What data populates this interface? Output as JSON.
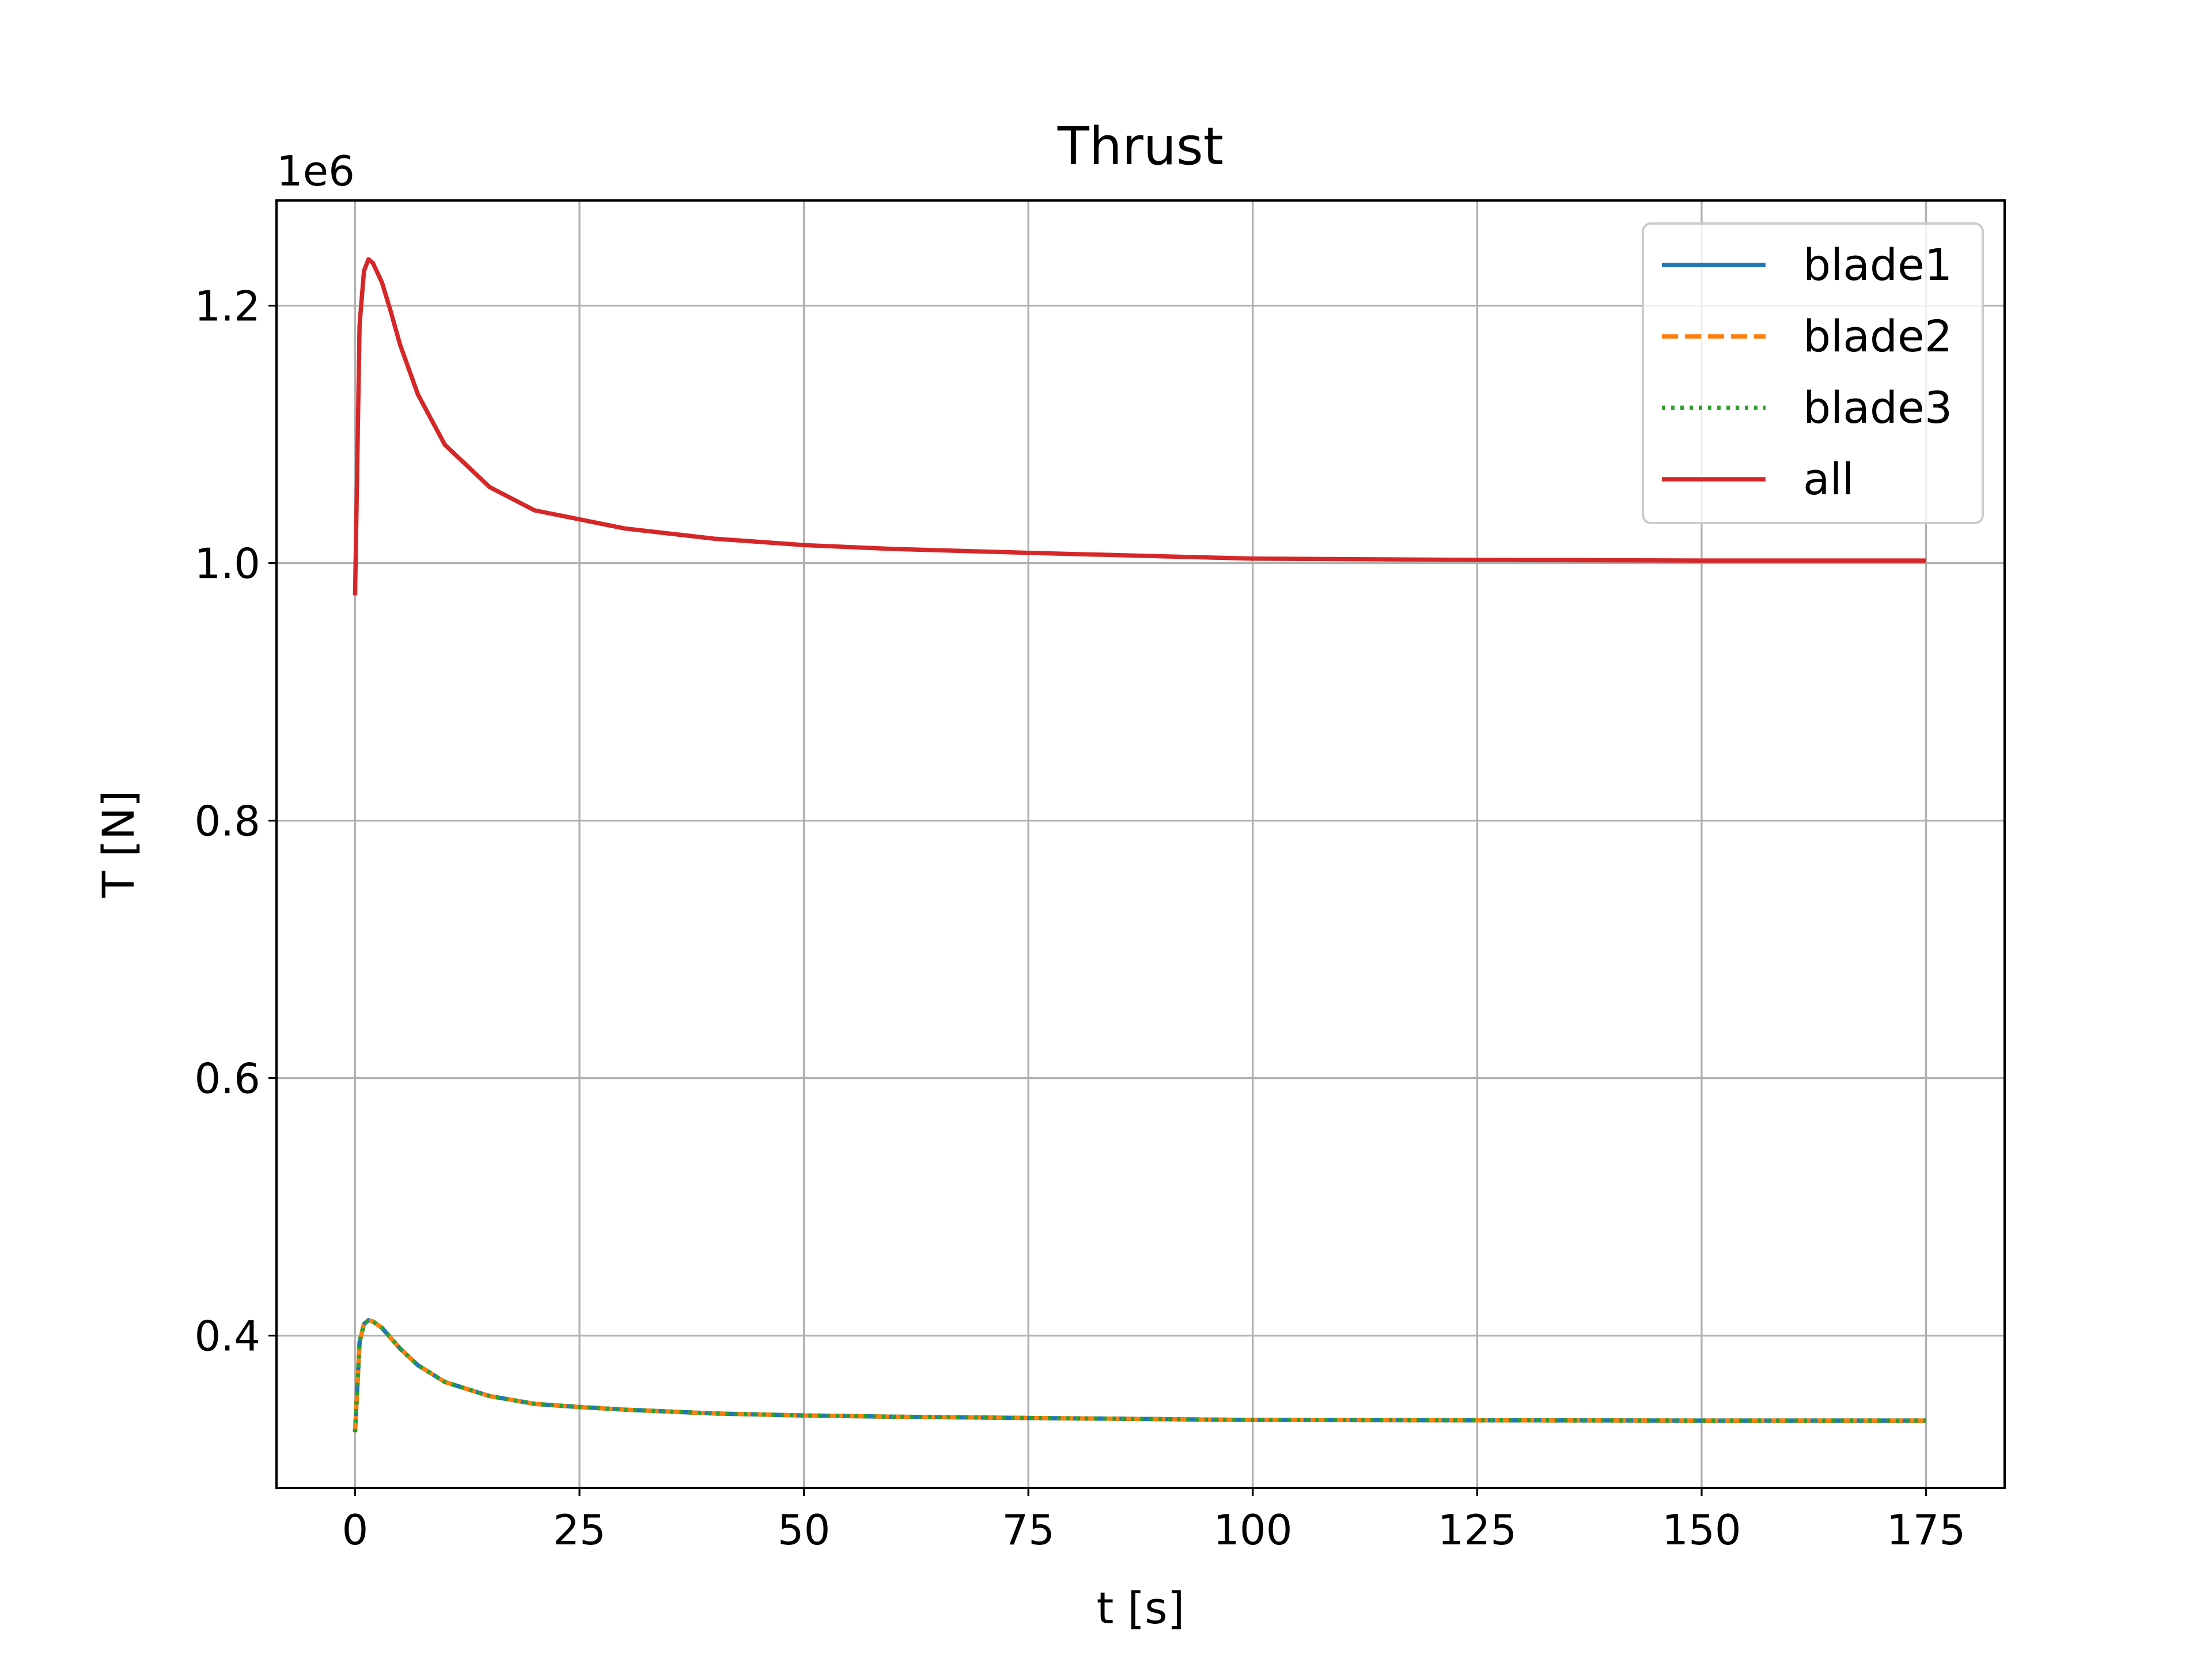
{
  "chart_data": {
    "type": "line",
    "title": "Thrust",
    "xlabel": "t [s]",
    "ylabel": "T [N]",
    "offset_label": "1e6",
    "xlim": [
      -8.75,
      183.75
    ],
    "ylim": [
      0.2817,
      1.2817
    ],
    "xticks": [
      0,
      25,
      50,
      75,
      100,
      125,
      150,
      175
    ],
    "xtick_labels": [
      "0",
      "25",
      "50",
      "75",
      "100",
      "125",
      "150",
      "175"
    ],
    "yticks": [
      0.4,
      0.6,
      0.8,
      1.0,
      1.2
    ],
    "ytick_labels": [
      "0.4",
      "0.6",
      "0.8",
      "1.0",
      "1.2"
    ],
    "grid": true,
    "legend": "upper right",
    "x": [
      0,
      0.5,
      1,
      1.5,
      2,
      3,
      4,
      5,
      7,
      10,
      15,
      20,
      25,
      30,
      40,
      50,
      60,
      75,
      100,
      125,
      150,
      175
    ],
    "series": [
      {
        "name": "blade1",
        "color": "#1f77b4",
        "dash": "solid",
        "values": [
          0.325,
          0.395,
          0.409,
          0.412,
          0.411,
          0.406,
          0.398,
          0.39,
          0.377,
          0.364,
          0.353,
          0.347,
          0.3445,
          0.3425,
          0.3395,
          0.338,
          0.337,
          0.336,
          0.3345,
          0.3342,
          0.334,
          0.334
        ]
      },
      {
        "name": "blade2",
        "color": "#ff7f0e",
        "dash": "dashed",
        "values": [
          0.325,
          0.395,
          0.409,
          0.412,
          0.411,
          0.406,
          0.398,
          0.39,
          0.377,
          0.364,
          0.353,
          0.347,
          0.3445,
          0.3425,
          0.3395,
          0.338,
          0.337,
          0.336,
          0.3345,
          0.3342,
          0.334,
          0.334
        ]
      },
      {
        "name": "blade3",
        "color": "#2ca02c",
        "dash": "dotted",
        "values": [
          0.325,
          0.395,
          0.409,
          0.412,
          0.411,
          0.406,
          0.398,
          0.39,
          0.377,
          0.364,
          0.353,
          0.347,
          0.3445,
          0.3425,
          0.3395,
          0.338,
          0.337,
          0.336,
          0.3345,
          0.3342,
          0.334,
          0.334
        ]
      },
      {
        "name": "all",
        "color": "#d62728",
        "dash": "solid",
        "values": [
          0.975,
          1.185,
          1.227,
          1.236,
          1.233,
          1.218,
          1.195,
          1.17,
          1.131,
          1.092,
          1.059,
          1.041,
          1.034,
          1.027,
          1.019,
          1.014,
          1.011,
          1.008,
          1.0035,
          1.0025,
          1.002,
          1.002
        ]
      }
    ]
  }
}
